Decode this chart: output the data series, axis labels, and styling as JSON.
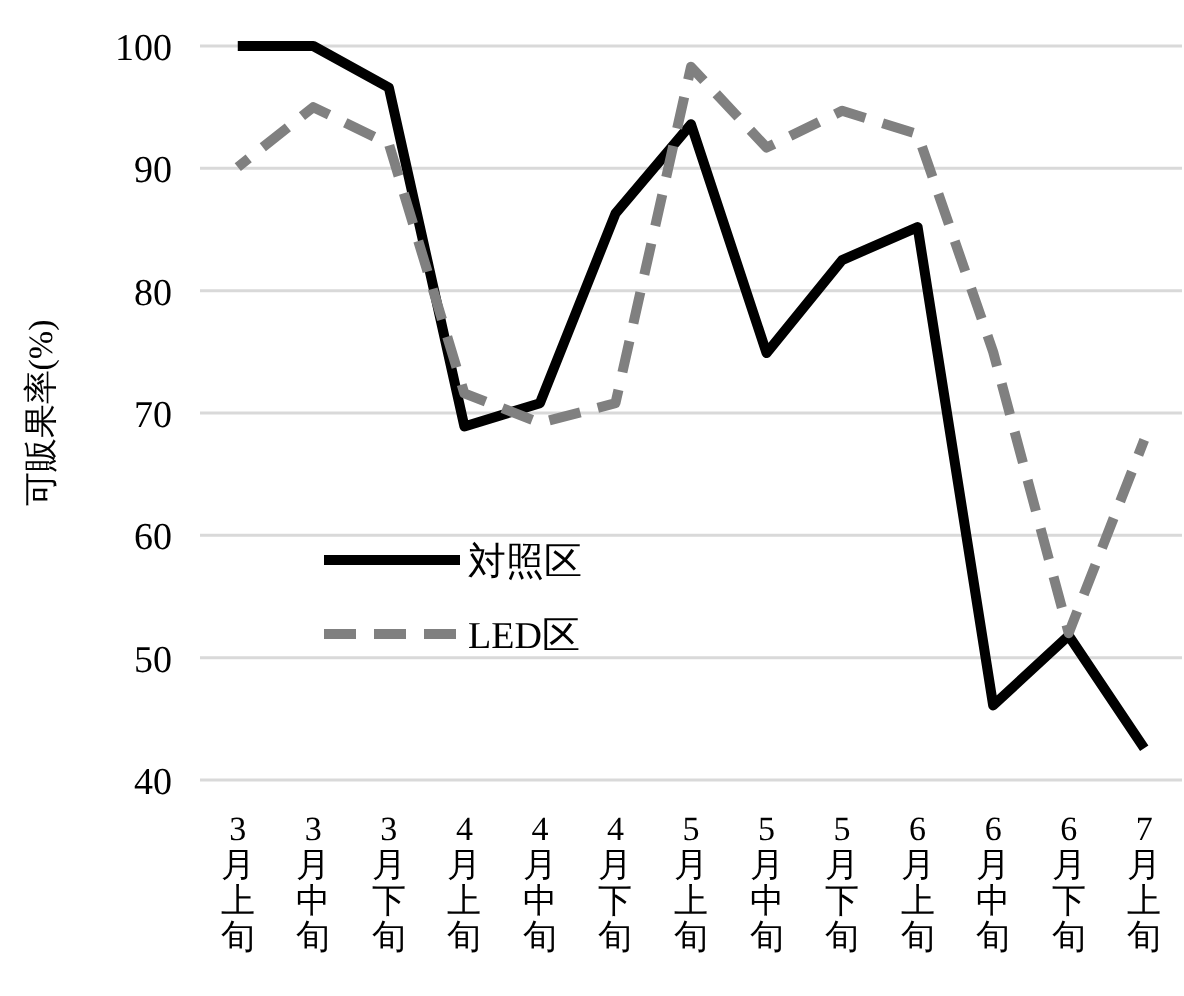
{
  "chart_data": {
    "type": "line",
    "ylabel": "可販果率(%)",
    "categories": [
      "3月上旬",
      "3月中旬",
      "3月下旬",
      "4月上旬",
      "4月中旬",
      "4月下旬",
      "5月上旬",
      "5月中旬",
      "5月下旬",
      "6月上旬",
      "6月中旬",
      "6月下旬",
      "7月上旬"
    ],
    "series": [
      {
        "name": "対照区",
        "color": "#000000",
        "line_style": "solid",
        "values": [
          100,
          100,
          96.6,
          68.9,
          70.8,
          86.3,
          93.6,
          74.9,
          82.5,
          85.2,
          46.1,
          51.8,
          42.6
        ]
      },
      {
        "name": "LED区",
        "color": "#808080",
        "line_style": "dashed",
        "values": [
          90.1,
          95,
          92,
          71.6,
          69.2,
          70.8,
          98.3,
          91.7,
          94.7,
          92.8,
          75,
          52,
          67.8
        ]
      }
    ],
    "ylim": [
      40,
      100
    ],
    "yticks": [
      40,
      50,
      60,
      70,
      80,
      90,
      100
    ],
    "grid": "y",
    "legend": "bottom left",
    "marker": "none"
  }
}
